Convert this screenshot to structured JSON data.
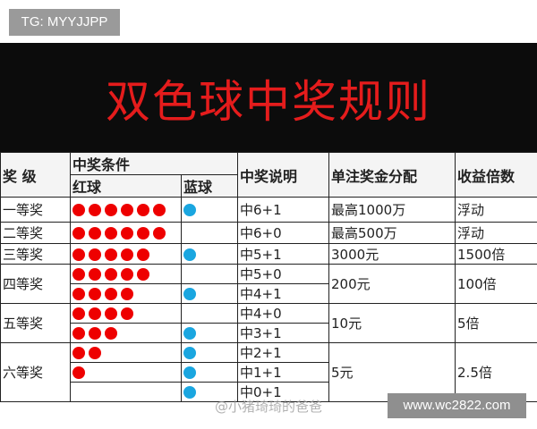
{
  "tag": "TG: MYYJJPP",
  "title": "双色球中奖规则",
  "headers": {
    "level": "奖 级",
    "condition": "中奖条件",
    "red": "红球",
    "blue": "蓝球",
    "desc": "中奖说明",
    "prize": "单注奖金分配",
    "ratio": "收益倍数"
  },
  "rows": [
    {
      "level": "一等奖",
      "red": 6,
      "blue": 1,
      "desc": "中6+1",
      "prize": "最高1000万",
      "ratio": "浮动"
    },
    {
      "level": "二等奖",
      "red": 6,
      "blue": 0,
      "desc": "中6+0",
      "prize": "最高500万",
      "ratio": "浮动"
    },
    {
      "level": "三等奖",
      "red": 5,
      "blue": 1,
      "desc": "中5+1",
      "prize": "3000元",
      "ratio": "1500倍"
    },
    {
      "level": "四等奖",
      "red": 5,
      "blue": 0,
      "desc": "中5+0",
      "prize": "200元",
      "ratio": "100倍"
    },
    {
      "red": 4,
      "blue": 1,
      "desc": "中4+1"
    },
    {
      "level": "五等奖",
      "red": 4,
      "blue": 0,
      "desc": "中4+0",
      "prize": "10元",
      "ratio": "5倍"
    },
    {
      "red": 3,
      "blue": 1,
      "desc": "中3+1"
    },
    {
      "level": "六等奖",
      "red": 2,
      "blue": 1,
      "desc": "中2+1",
      "prize": "5元",
      "ratio": "2.5倍"
    },
    {
      "red": 1,
      "blue": 1,
      "desc": "中1+1"
    },
    {
      "red": 0,
      "blue": 1,
      "desc": "中0+1"
    }
  ],
  "spans": [
    1,
    1,
    1,
    2,
    0,
    2,
    0,
    3,
    0,
    0
  ],
  "watermark": "@小猪琦琦的爸爸",
  "site": "www.wc2822.com",
  "colors": {
    "red_ball": "#e00000",
    "blue_ball": "#1aa6e0",
    "title": "#e51c1c"
  }
}
